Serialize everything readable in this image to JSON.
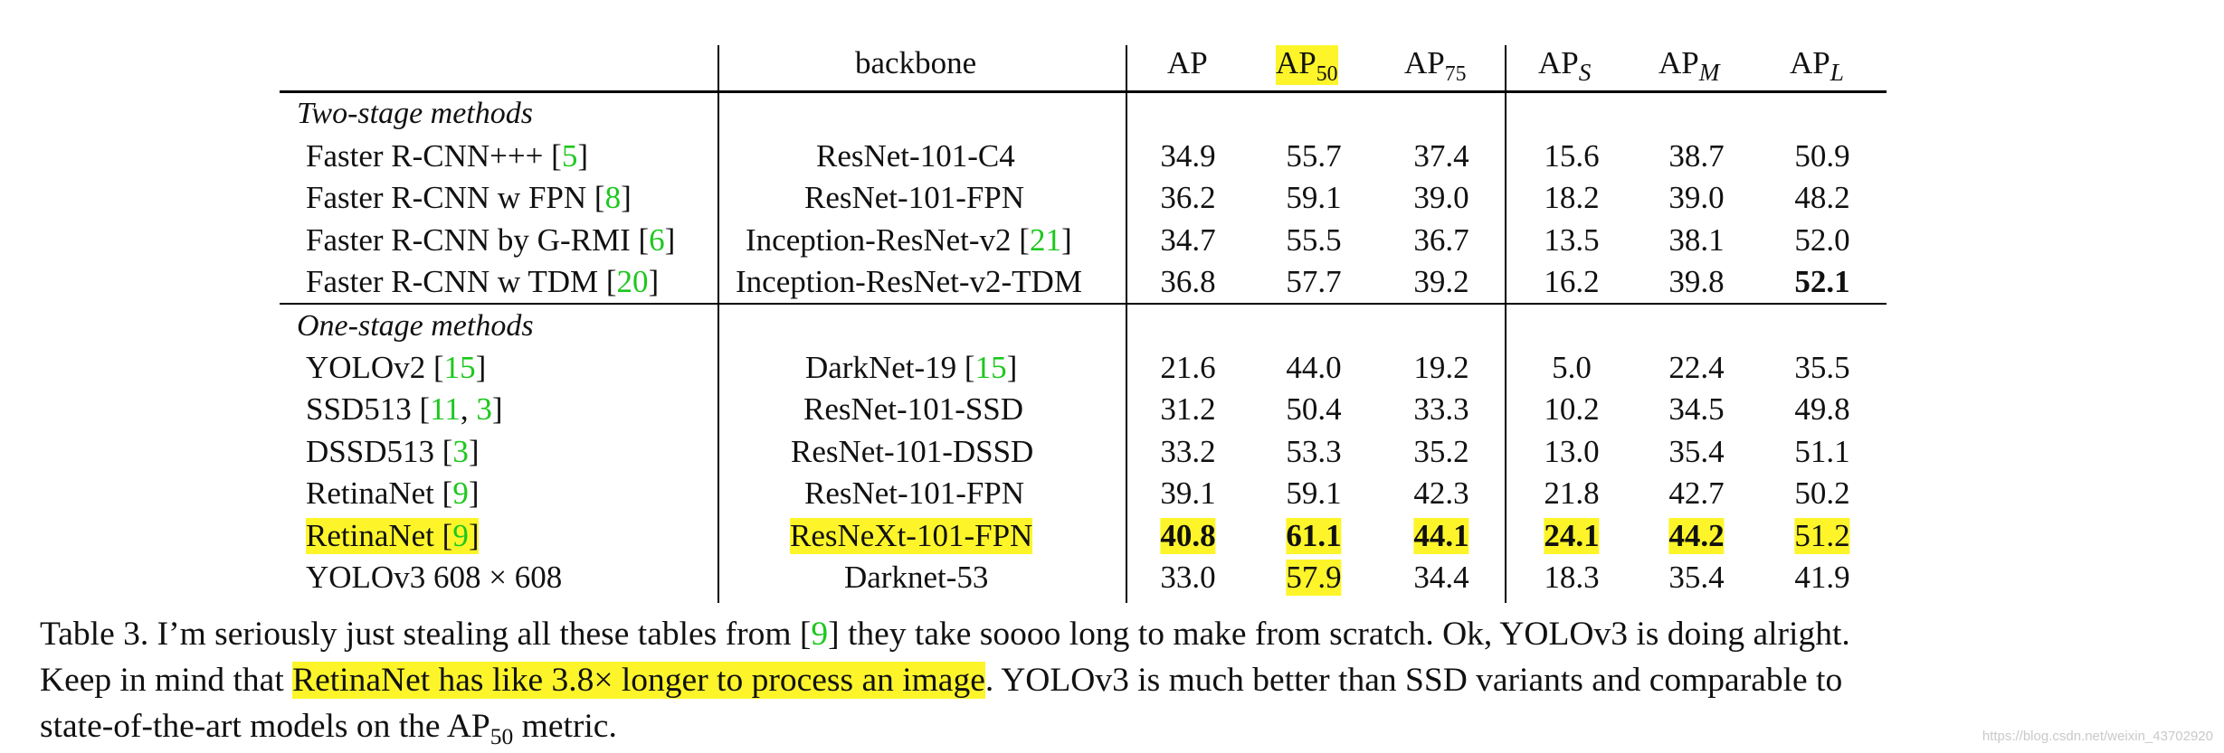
{
  "table": {
    "header": {
      "backbone": "backbone",
      "ap": "AP",
      "ap50": {
        "base": "AP",
        "sub": "50"
      },
      "ap75": {
        "base": "AP",
        "sub": "75"
      },
      "aps": {
        "base": "AP",
        "sub": "S"
      },
      "apm": {
        "base": "AP",
        "sub": "M"
      },
      "apl": {
        "base": "AP",
        "sub": "L"
      }
    },
    "sections": [
      {
        "title": "Two-stage methods"
      },
      {
        "title": "One-stage methods"
      }
    ],
    "rows": [
      {
        "method": "Faster R-CNN+++ [",
        "cite": "5",
        "tail": "]",
        "backbone": "ResNet-101-C4",
        "bcite": "",
        "values": [
          "34.9",
          "55.7",
          "37.4",
          "15.6",
          "38.7",
          "50.9"
        ]
      },
      {
        "method": "Faster R-CNN w FPN [",
        "cite": "8",
        "tail": "]",
        "backbone": "ResNet-101-FPN",
        "bcite": "",
        "values": [
          "36.2",
          "59.1",
          "39.0",
          "18.2",
          "39.0",
          "48.2"
        ]
      },
      {
        "method": "Faster R-CNN by G-RMI [",
        "cite": "6",
        "tail": "]",
        "backbone": "Inception-ResNet-v2 [",
        "bcite": "21",
        "values": [
          "34.7",
          "55.5",
          "36.7",
          "13.5",
          "38.1",
          "52.0"
        ]
      },
      {
        "method": "Faster R-CNN w TDM [",
        "cite": "20",
        "tail": "]",
        "backbone": "Inception-ResNet-v2-TDM",
        "bcite": "",
        "values": [
          "36.8",
          "57.7",
          "39.2",
          "16.2",
          "39.8",
          "52.1"
        ]
      },
      {
        "method": "YOLOv2 [",
        "cite": "15",
        "tail": "]",
        "backbone": "DarkNet-19 [",
        "bcite": "15",
        "values": [
          "21.6",
          "44.0",
          "19.2",
          "5.0",
          "22.4",
          "35.5"
        ]
      },
      {
        "method": "SSD513 [",
        "cite": "11",
        "cite2": "3",
        "tail": "]",
        "backbone": "ResNet-101-SSD",
        "bcite": "",
        "values": [
          "31.2",
          "50.4",
          "33.3",
          "10.2",
          "34.5",
          "49.8"
        ]
      },
      {
        "method": "DSSD513 [",
        "cite": "3",
        "tail": "]",
        "backbone": "ResNet-101-DSSD",
        "bcite": "",
        "values": [
          "33.2",
          "53.3",
          "35.2",
          "13.0",
          "35.4",
          "51.1"
        ]
      },
      {
        "method": "RetinaNet [",
        "cite": "9",
        "tail": "]",
        "backbone": "ResNet-101-FPN",
        "bcite": "",
        "values": [
          "39.1",
          "59.1",
          "42.3",
          "21.8",
          "42.7",
          "50.2"
        ]
      },
      {
        "method": "RetinaNet [",
        "cite": "9",
        "tail": "]",
        "backbone": "ResNeXt-101-FPN",
        "bcite": "",
        "values": [
          "40.8",
          "61.1",
          "44.1",
          "24.1",
          "44.2",
          "51.2"
        ]
      },
      {
        "method": "YOLOv3 608 × 608",
        "cite": "",
        "tail": "",
        "backbone": "Darknet-53",
        "bcite": "",
        "values": [
          "33.0",
          "57.9",
          "34.4",
          "18.3",
          "35.4",
          "41.9"
        ]
      }
    ],
    "bracket_close": "]",
    "comma": ", "
  },
  "caption": {
    "line1_a": "Table 3. I’m seriously just stealing all these tables from [",
    "line1_cite": "9",
    "line1_b": "] they take soooo long to make from scratch. Ok, YOLOv3 is doing alright.",
    "line2_a": "Keep in mind that ",
    "line2_hl": "RetinaNet has like 3.8× longer to process an image",
    "line2_b": ". YOLOv3 is much better than SSD variants and comparable to",
    "line3_a": "state-of-the-art models on the AP",
    "line3_sub": "50",
    "line3_b": " metric."
  },
  "watermark": "https://blog.csdn.net/weixin_43702920",
  "colors": {
    "highlight": "#fdf52a",
    "citation": "#1ec71e"
  }
}
